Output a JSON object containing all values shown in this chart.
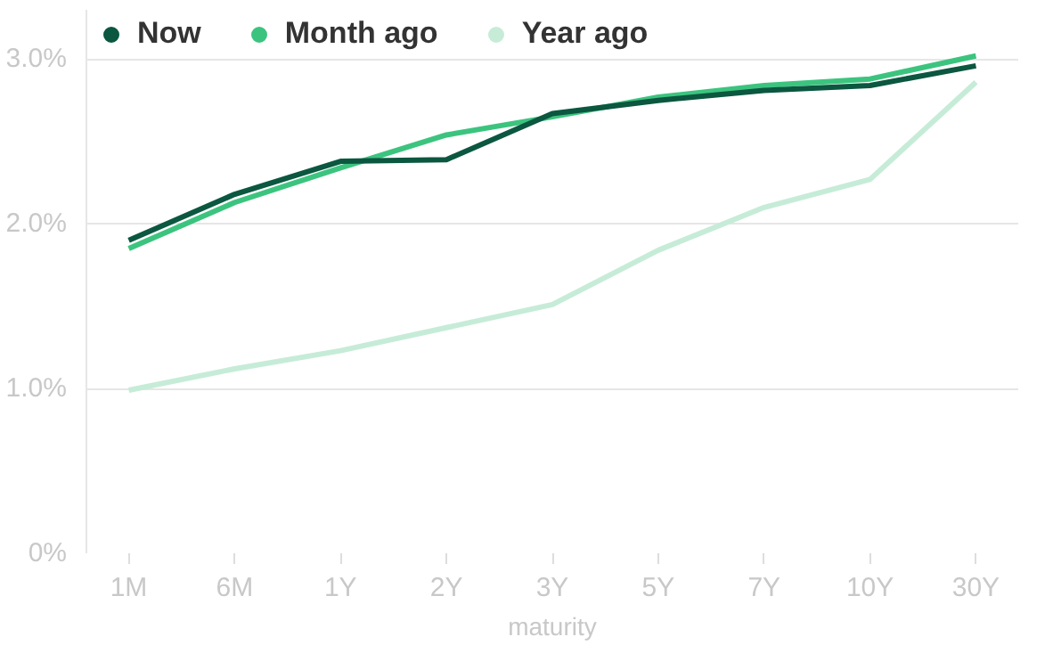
{
  "chart_data": {
    "type": "line",
    "xlabel": "maturity",
    "categories": [
      "1M",
      "6M",
      "1Y",
      "2Y",
      "3Y",
      "5Y",
      "7Y",
      "10Y",
      "30Y"
    ],
    "series": [
      {
        "name": "Now",
        "color": "#0b5740",
        "values": [
          1.9,
          2.18,
          2.38,
          2.39,
          2.67,
          2.75,
          2.81,
          2.84,
          2.96
        ]
      },
      {
        "name": "Month ago",
        "color": "#3cc47f",
        "values": [
          1.85,
          2.13,
          2.34,
          2.54,
          2.65,
          2.77,
          2.84,
          2.88,
          3.02
        ]
      },
      {
        "name": "Year ago",
        "color": "#c6ecd8",
        "values": [
          0.99,
          1.12,
          1.23,
          1.37,
          1.51,
          1.84,
          2.1,
          2.27,
          2.86
        ]
      }
    ],
    "ylim": [
      0,
      3.3
    ],
    "yticks": [
      {
        "value": 0,
        "label": "0%"
      },
      {
        "value": 1,
        "label": "1.0%"
      },
      {
        "value": 2,
        "label": "2.0%"
      },
      {
        "value": 3,
        "label": "3.0%"
      }
    ],
    "grid": "y",
    "legend": "top left",
    "marker": "none",
    "line_style": "solid"
  }
}
